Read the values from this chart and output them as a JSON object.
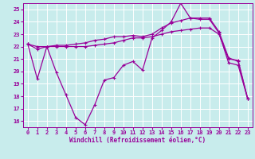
{
  "xlabel": "Windchill (Refroidissement éolien,°C)",
  "background_color": "#c8ecec",
  "line_color": "#990099",
  "grid_color": "#ffffff",
  "xlim": [
    -0.5,
    23.5
  ],
  "ylim": [
    15.5,
    25.5
  ],
  "xticks": [
    0,
    1,
    2,
    3,
    4,
    5,
    6,
    7,
    8,
    9,
    10,
    11,
    12,
    13,
    14,
    15,
    16,
    17,
    18,
    19,
    20,
    21,
    22,
    23
  ],
  "yticks": [
    16,
    17,
    18,
    19,
    20,
    21,
    22,
    23,
    24,
    25
  ],
  "line1": [
    22.2,
    19.4,
    22.0,
    19.9,
    18.1,
    16.3,
    15.7,
    17.3,
    19.3,
    19.5,
    20.5,
    20.8,
    20.1,
    22.7,
    23.3,
    24.0,
    25.5,
    24.3,
    24.2,
    24.2,
    23.1,
    20.7,
    20.5,
    17.8
  ],
  "line2": [
    22.2,
    22.0,
    22.0,
    22.1,
    22.1,
    22.2,
    22.3,
    22.5,
    22.6,
    22.8,
    22.8,
    22.9,
    22.8,
    23.0,
    23.5,
    23.9,
    24.1,
    24.3,
    24.3,
    24.3,
    23.2,
    21.1,
    20.8,
    17.8
  ],
  "line3": [
    22.2,
    21.8,
    22.0,
    22.0,
    22.0,
    22.0,
    22.0,
    22.1,
    22.2,
    22.3,
    22.5,
    22.7,
    22.7,
    22.8,
    23.0,
    23.2,
    23.3,
    23.4,
    23.5,
    23.5,
    23.0,
    21.0,
    20.9,
    17.8
  ],
  "markersize": 3,
  "linewidth": 0.9
}
